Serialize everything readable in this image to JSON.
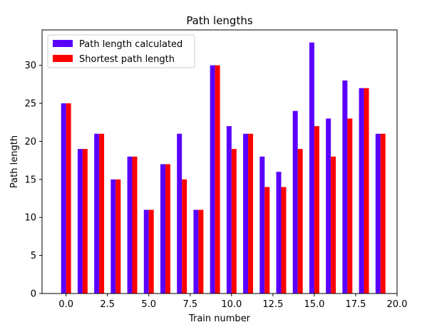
{
  "chart_data": {
    "type": "bar",
    "title": "Path lengths",
    "xlabel": "Train number",
    "ylabel": "Path length",
    "xlim": [
      -1.45,
      20.0
    ],
    "ylim": [
      0,
      34.65
    ],
    "xticks": [
      "0.0",
      "2.5",
      "5.0",
      "7.5",
      "10.0",
      "12.5",
      "15.0",
      "17.5",
      "20.0"
    ],
    "xtick_values": [
      0,
      2.5,
      5,
      7.5,
      10,
      12.5,
      15,
      17.5,
      20
    ],
    "yticks": [
      "0",
      "5",
      "10",
      "15",
      "20",
      "25",
      "30"
    ],
    "ytick_values": [
      0,
      5,
      10,
      15,
      20,
      25,
      30
    ],
    "x": [
      0,
      1,
      2,
      3,
      4,
      5,
      6,
      7,
      8,
      9,
      10,
      11,
      12,
      13,
      14,
      15,
      16,
      17,
      18,
      19
    ],
    "bar_width": 0.3,
    "legend_position": "upper-left",
    "grid": false,
    "series": [
      {
        "name": "Path length calculated",
        "color": "#5a00ff",
        "values": [
          25,
          19,
          21,
          15,
          18,
          11,
          17,
          21,
          11,
          30,
          22,
          21,
          18,
          16,
          24,
          33,
          23,
          28,
          27,
          21
        ]
      },
      {
        "name": "Shortest path length",
        "color": "#ff0000",
        "values": [
          25,
          19,
          21,
          15,
          18,
          11,
          17,
          15,
          11,
          30,
          19,
          21,
          14,
          14,
          19,
          22,
          18,
          23,
          27,
          21
        ]
      }
    ]
  }
}
